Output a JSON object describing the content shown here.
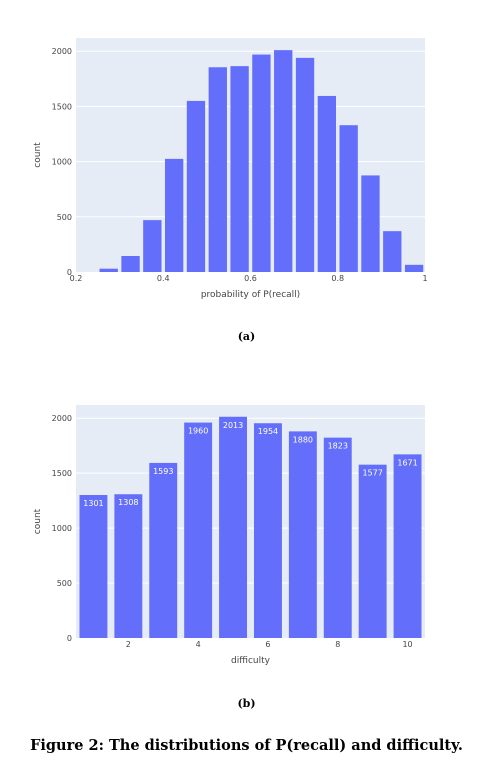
{
  "chart_data": [
    {
      "type": "bar",
      "panel": "(a)",
      "xlabel": "probability of P(recall)",
      "ylabel": "count",
      "xlim": [
        0.2,
        1.0
      ],
      "ylim": [
        0,
        2120
      ],
      "xticks": [
        0.2,
        0.4,
        0.6,
        0.8,
        1.0
      ],
      "xtick_labels": [
        "0.2",
        "0.4",
        "0.6",
        "0.8",
        "1"
      ],
      "yticks": [
        0,
        500,
        1000,
        1500,
        2000
      ],
      "ytick_labels": [
        "0",
        "500",
        "1000",
        "1500",
        "2000"
      ],
      "x": [
        0.275,
        0.325,
        0.375,
        0.425,
        0.475,
        0.525,
        0.575,
        0.625,
        0.675,
        0.725,
        0.775,
        0.825,
        0.875,
        0.925,
        0.975
      ],
      "values": [
        30,
        145,
        470,
        1025,
        1550,
        1855,
        1865,
        1970,
        2010,
        1940,
        1595,
        1330,
        875,
        370,
        65
      ],
      "bar_width": 0.042,
      "color": "#636efa",
      "plot_bg": "#e5ecf6",
      "grid": true
    },
    {
      "type": "bar",
      "panel": "(b)",
      "xlabel": "difficulty",
      "ylabel": "count",
      "xlim": [
        0.5,
        10.5
      ],
      "ylim": [
        0,
        2120
      ],
      "xticks": [
        2,
        4,
        6,
        8,
        10
      ],
      "xtick_labels": [
        "2",
        "4",
        "6",
        "8",
        "10"
      ],
      "yticks": [
        0,
        500,
        1000,
        1500,
        2000
      ],
      "ytick_labels": [
        "0",
        "500",
        "1000",
        "1500",
        "2000"
      ],
      "x": [
        1,
        2,
        3,
        4,
        5,
        6,
        7,
        8,
        9,
        10
      ],
      "values": [
        1301,
        1308,
        1593,
        1960,
        2013,
        1954,
        1880,
        1823,
        1577,
        1671
      ],
      "data_labels": [
        "1301",
        "1308",
        "1593",
        "1960",
        "2013",
        "1954",
        "1880",
        "1823",
        "1577",
        "1671"
      ],
      "bar_width": 0.8,
      "color": "#636efa",
      "plot_bg": "#e5ecf6",
      "grid": true
    }
  ],
  "labels": {
    "panel_a": "(a)",
    "panel_b": "(b)"
  },
  "caption": "Figure 2: The distributions of P(recall) and difficulty."
}
